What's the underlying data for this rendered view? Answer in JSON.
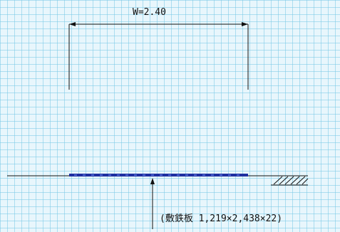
{
  "width_dimension": "W=2.40",
  "plate_note": "(敷鉄板 1,219×2,438×22)",
  "colors": {
    "line": "#111111",
    "plate": "#1f2fa0",
    "grid_background": "#e8f6fc"
  },
  "icons": [
    "ground-hatch-icon",
    "leader-arrow-icon"
  ]
}
